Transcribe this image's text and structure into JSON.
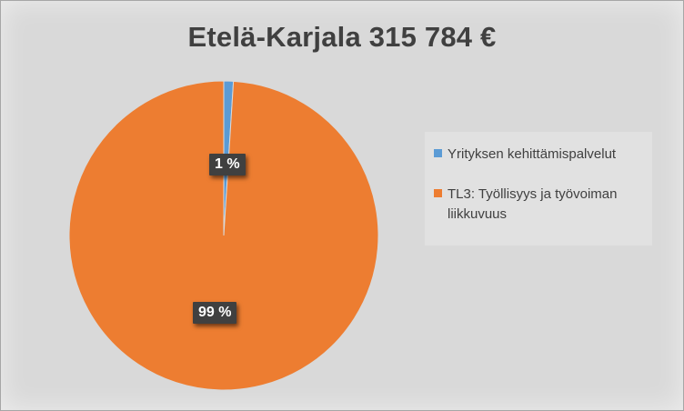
{
  "chart_data": {
    "type": "pie",
    "title": "Etelä-Karjala 315 784 €",
    "categories": [
      "Yrityksen kehittämispalvelut",
      "TL3: Työllisyys ja työvoiman liikkuvuus"
    ],
    "values": [
      1,
      99
    ],
    "value_unit": "%",
    "data_labels": [
      "1 %",
      "99 %"
    ],
    "colors": [
      "#5b9bd5",
      "#ed7d31"
    ],
    "legend_position": "right"
  }
}
